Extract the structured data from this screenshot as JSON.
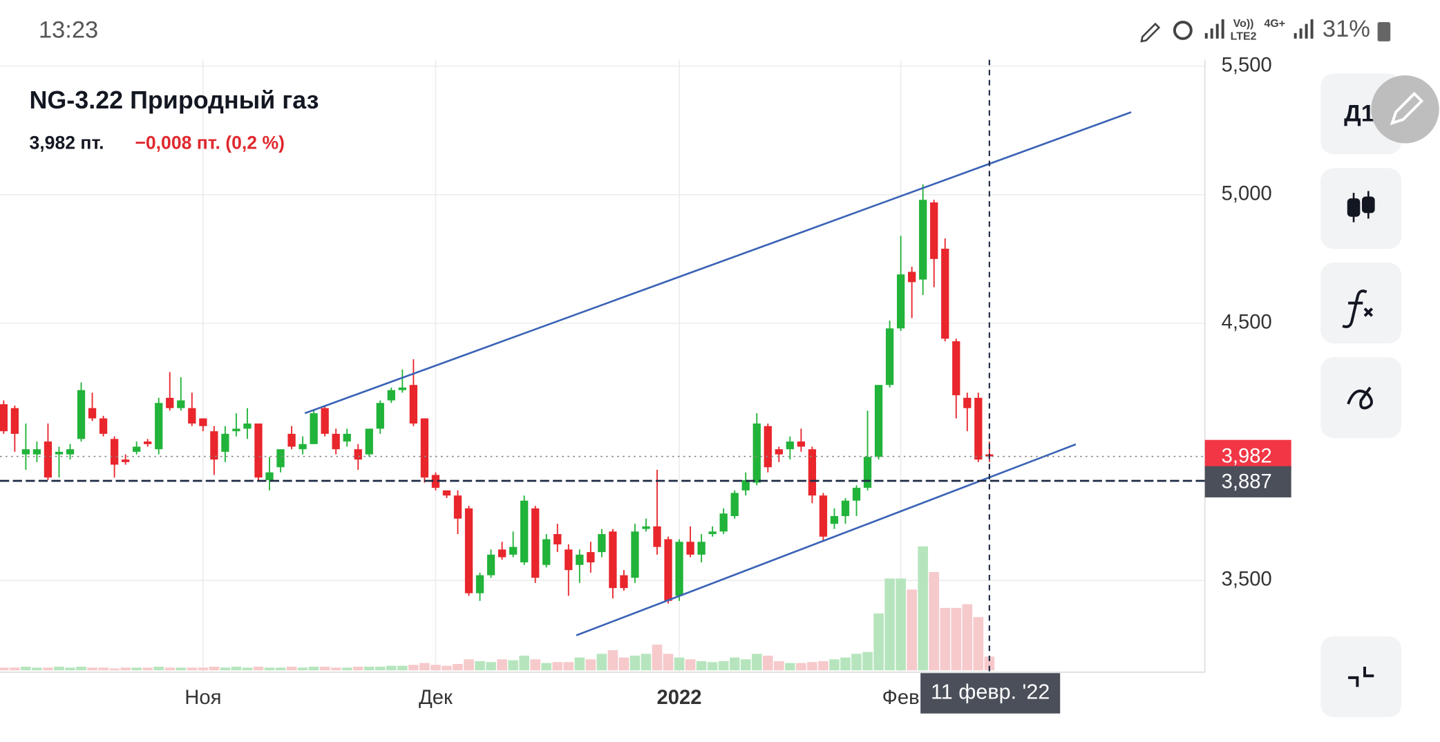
{
  "status_bar": {
    "time": "13:23",
    "volte": "Vo))",
    "lte": "LTE2",
    "net": "4G+",
    "battery": "31%"
  },
  "header": {
    "title": "NG-3.22 Природный газ",
    "price": "3,982 пт.",
    "change": "−0,008 пт. (0,2 %)"
  },
  "toolbar": {
    "interval": "Д1"
  },
  "chart_data": {
    "type": "candlestick",
    "categories": [
      null,
      null,
      null,
      null,
      null,
      null,
      null,
      null,
      null,
      null,
      null,
      null,
      null,
      null,
      null,
      null,
      null,
      null,
      "Ноя",
      null,
      null,
      null,
      null,
      null,
      null,
      null,
      null,
      null,
      null,
      null,
      null,
      null,
      null,
      null,
      null,
      null,
      null,
      null,
      null,
      "Дек",
      null,
      null,
      null,
      null,
      null,
      null,
      null,
      null,
      null,
      null,
      null,
      null,
      null,
      null,
      null,
      null,
      null,
      null,
      null,
      null,
      null,
      "2022",
      null,
      null,
      null,
      null,
      null,
      null,
      null,
      null,
      null,
      null,
      null,
      null,
      null,
      null,
      null,
      null,
      null,
      null,
      null,
      "Фев",
      null,
      null,
      null,
      null,
      null,
      null,
      null,
      null
    ],
    "open": [
      4185,
      4170,
      3990,
      3990,
      4040,
      3990,
      3990,
      4050,
      4170,
      4130,
      4050,
      3970,
      4000,
      4040,
      4010,
      4210,
      4170,
      4170,
      4130,
      4080,
      4000,
      4080,
      4090,
      4110,
      3890,
      3940,
      4070,
      4010,
      4030,
      4170,
      4070,
      4040,
      4010,
      3990,
      4090,
      4200,
      4240,
      4260,
      4130,
      3910,
      3850,
      3830,
      3780,
      3450,
      3520,
      3620,
      3600,
      3570,
      3780,
      3560,
      3680,
      3620,
      3560,
      3610,
      3610,
      3690,
      3520,
      3510,
      3700,
      3710,
      3660,
      3440,
      3650,
      3600,
      3680,
      3690,
      3750,
      3850,
      3880,
      4100,
      4010,
      4010,
      4040,
      4010,
      3830,
      3720,
      3750,
      3810,
      3860,
      3980,
      4260,
      4480,
      4700,
      4670,
      4970,
      4790,
      4430,
      4210,
      4210,
      3990
    ],
    "high": [
      4200,
      4180,
      4110,
      4040,
      4110,
      4020,
      4030,
      4270,
      4230,
      4140,
      4060,
      3990,
      4040,
      4050,
      4210,
      4310,
      4290,
      4230,
      4130,
      4100,
      4100,
      4150,
      4170,
      4110,
      3980,
      4010,
      4100,
      4060,
      4160,
      4180,
      4090,
      4090,
      4030,
      4090,
      4200,
      4250,
      4320,
      4360,
      4130,
      3920,
      3850,
      3850,
      3790,
      3530,
      3620,
      3650,
      3690,
      3830,
      3790,
      3680,
      3720,
      3640,
      3620,
      3650,
      3700,
      3700,
      3540,
      3720,
      3740,
      3930,
      3670,
      3660,
      3710,
      3680,
      3710,
      3780,
      3850,
      3920,
      4150,
      4110,
      4020,
      4060,
      4090,
      4020,
      3840,
      3780,
      3820,
      3870,
      4160,
      4260,
      4510,
      4840,
      4720,
      5040,
      4980,
      4830,
      4440,
      4230,
      4230,
      4040
    ],
    "low": [
      4070,
      4000,
      3930,
      3960,
      3890,
      3900,
      3970,
      4040,
      4120,
      4060,
      3900,
      3950,
      3990,
      4020,
      3990,
      4160,
      4160,
      4100,
      4080,
      3910,
      3960,
      4060,
      4050,
      3890,
      3850,
      3920,
      4010,
      3990,
      4030,
      4060,
      3990,
      4020,
      3930,
      3980,
      4070,
      4190,
      4230,
      4100,
      3880,
      3850,
      3820,
      3680,
      3440,
      3420,
      3510,
      3580,
      3590,
      3560,
      3490,
      3550,
      3610,
      3440,
      3490,
      3530,
      3590,
      3430,
      3460,
      3490,
      3690,
      3600,
      3410,
      3420,
      3590,
      3570,
      3670,
      3680,
      3740,
      3830,
      3870,
      3920,
      3960,
      3970,
      4000,
      3800,
      3650,
      3700,
      3720,
      3750,
      3850,
      3970,
      4250,
      4470,
      4520,
      4610,
      4640,
      4430,
      4130,
      4080,
      3960,
      3960
    ],
    "close": [
      4080,
      4070,
      4010,
      4010,
      3900,
      4000,
      4010,
      4240,
      4130,
      4070,
      3950,
      3960,
      4020,
      4030,
      4190,
      4170,
      4200,
      4110,
      4100,
      3970,
      4070,
      4090,
      4110,
      3900,
      3920,
      4010,
      4020,
      4030,
      4150,
      4070,
      4010,
      4070,
      3970,
      4090,
      4190,
      4240,
      4250,
      4110,
      3900,
      3860,
      3830,
      3740,
      3450,
      3520,
      3600,
      3590,
      3630,
      3810,
      3510,
      3660,
      3640,
      3540,
      3600,
      3570,
      3680,
      3470,
      3470,
      3690,
      3710,
      3630,
      3420,
      3650,
      3600,
      3650,
      3690,
      3760,
      3840,
      3890,
      4110,
      3940,
      3990,
      4040,
      4020,
      3830,
      3670,
      3750,
      3810,
      3860,
      3980,
      4260,
      4480,
      4690,
      4660,
      4980,
      4750,
      4440,
      4220,
      4170,
      3970,
      3982
    ],
    "volume": [
      3,
      3,
      4,
      3,
      3,
      4,
      3,
      4,
      3,
      3,
      2,
      3,
      3,
      3,
      4,
      3,
      3,
      3,
      3,
      4,
      3,
      4,
      3,
      4,
      3,
      3,
      4,
      3,
      4,
      4,
      3,
      3,
      4,
      4,
      4,
      5,
      5,
      6,
      8,
      6,
      5,
      7,
      12,
      10,
      9,
      12,
      11,
      16,
      12,
      8,
      9,
      9,
      14,
      12,
      18,
      22,
      14,
      16,
      18,
      28,
      18,
      14,
      12,
      10,
      9,
      10,
      14,
      12,
      18,
      16,
      10,
      8,
      8,
      9,
      10,
      12,
      14,
      18,
      20,
      62,
      100,
      100,
      88,
      135,
      107,
      68,
      68,
      72,
      58,
      15
    ],
    "up_color": "#22b33a",
    "down_color": "#e8262c",
    "up_volume_color": "#b6e5bd",
    "down_volume_color": "#f6c9cb",
    "ylim": [
      3150,
      5525
    ],
    "yticks": [
      {
        "value": 3500,
        "label": "3,500"
      },
      {
        "value": 4500,
        "label": "4,500"
      },
      {
        "value": 5000,
        "label": "5,000"
      },
      {
        "value": 5500,
        "label": "5,500"
      }
    ],
    "grid": true,
    "trendlines": [
      {
        "x": [
          27.2,
          101.8
        ],
        "y": [
          4150,
          5321
        ],
        "color": "#3a63b5"
      },
      {
        "x": [
          51.7,
          96.8
        ],
        "y": [
          3286,
          4029
        ],
        "color": "#3a63b5"
      }
    ],
    "last_price": {
      "value": 3982,
      "label": "3,982"
    },
    "crosshair": {
      "index": 89,
      "label": "11 февр. '22",
      "price": {
        "value": 3887,
        "label": "3,887"
      }
    }
  }
}
